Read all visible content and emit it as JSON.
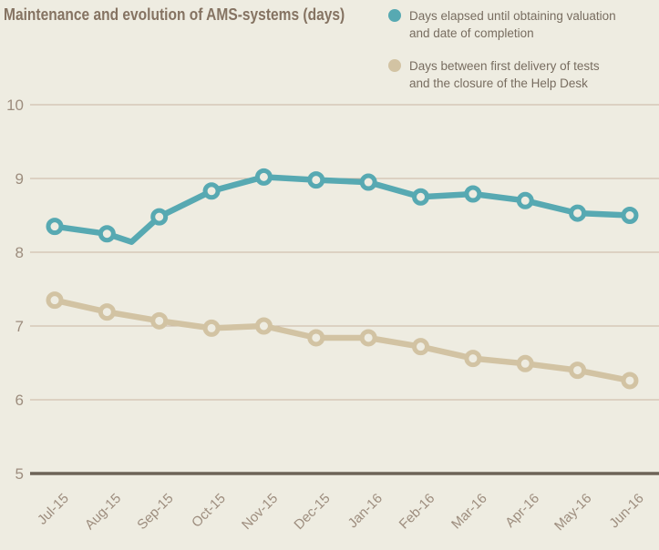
{
  "title": "Maintenance and evolution of AMS-systems (days)",
  "legend": {
    "position": "top-right",
    "items": [
      {
        "line1": "Days elapsed until obtaining valuation",
        "line2": "and date of completion",
        "color": "#57a9b2"
      },
      {
        "line1": "Days between first delivery of tests",
        "line2": "and the closure of the Help Desk",
        "color": "#d2c3a3"
      }
    ]
  },
  "chart_data": {
    "type": "line",
    "title": "Maintenance and evolution of AMS-systems (days)",
    "categories": [
      "Jul-15",
      "Aug-15",
      "Sep-15",
      "Oct-15",
      "Nov-15",
      "Dec-15",
      "Jan-16",
      "Feb-16",
      "Mar-16",
      "Apr-16",
      "May-16",
      "Jun-16"
    ],
    "series": [
      {
        "name": "Days elapsed until obtaining valuation and date of completion",
        "color": "#57a9b2",
        "values": [
          8.35,
          8.25,
          8.48,
          8.83,
          9.02,
          8.98,
          8.95,
          8.75,
          8.79,
          8.7,
          8.53,
          8.5
        ],
        "line_path": [
          [
            0,
            8.35
          ],
          [
            1,
            8.25
          ],
          [
            1.47,
            8.14
          ],
          [
            2,
            8.48
          ],
          [
            3,
            8.83
          ],
          [
            4,
            9.02
          ],
          [
            5,
            8.98
          ],
          [
            6,
            8.95
          ],
          [
            7,
            8.75
          ],
          [
            8,
            8.79
          ],
          [
            9,
            8.7
          ],
          [
            10,
            8.53
          ],
          [
            11,
            8.5
          ]
        ]
      },
      {
        "name": "Days between first delivery of tests and the closure of the Help Desk",
        "color": "#d2c3a3",
        "values": [
          7.35,
          7.19,
          7.07,
          6.97,
          7.0,
          6.84,
          6.84,
          6.72,
          6.56,
          6.49,
          6.4,
          6.26
        ]
      }
    ],
    "xlabel": "",
    "ylabel": "",
    "ylim": [
      5,
      10
    ],
    "yticks": [
      5,
      6,
      7,
      8,
      9,
      10
    ],
    "grid": true,
    "legend_position": "top-right",
    "marker_style": "hollow-circle"
  },
  "colors": {
    "background": "#eeece1",
    "title_text": "#857362",
    "legend_text": "#786d60",
    "tick_label": "#9d8d7e",
    "gridline": "#c9b6a4",
    "baseline": "#6d6458",
    "series_teal": "#57a9b2",
    "series_tan": "#d2c3a3"
  }
}
